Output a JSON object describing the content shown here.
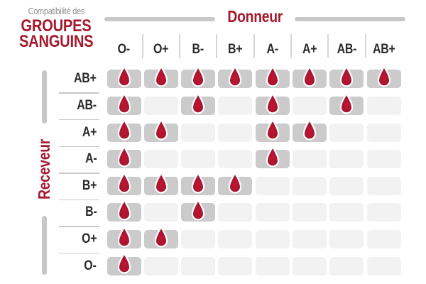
{
  "title": {
    "subtitle": "Compatibilité des",
    "main_line1": "GROUPES",
    "main_line2": "SANGUINS"
  },
  "axes": {
    "donor": "Donneur",
    "recipient": "Receveur"
  },
  "icons": {
    "compatible_marker": "blood-drop-icon"
  },
  "chart_data": {
    "type": "heatmap",
    "title": "Compatibilité des GROUPES SANGUINS",
    "x_axis_label": "Donneur",
    "y_axis_label": "Receveur",
    "columns": [
      "O-",
      "O+",
      "B-",
      "B+",
      "A-",
      "A+",
      "AB-",
      "AB+"
    ],
    "rows": [
      "AB+",
      "AB-",
      "A+",
      "A-",
      "B+",
      "B-",
      "O+",
      "O-"
    ],
    "matrix": [
      [
        1,
        1,
        1,
        1,
        1,
        1,
        1,
        1
      ],
      [
        1,
        0,
        1,
        0,
        1,
        0,
        1,
        0
      ],
      [
        1,
        1,
        0,
        0,
        1,
        1,
        0,
        0
      ],
      [
        1,
        0,
        0,
        0,
        1,
        0,
        0,
        0
      ],
      [
        1,
        1,
        1,
        1,
        0,
        0,
        0,
        0
      ],
      [
        1,
        0,
        1,
        0,
        0,
        0,
        0,
        0
      ],
      [
        1,
        1,
        0,
        0,
        0,
        0,
        0,
        0
      ],
      [
        1,
        0,
        0,
        0,
        0,
        0,
        0,
        0
      ]
    ],
    "cell_marker_meaning": "1 = blood drop shown (compatible), 0 = empty cell"
  },
  "colors": {
    "accent_red": "#A6192E",
    "drop_red_center": "#BE1634",
    "drop_red_edge": "#8F1226",
    "subtitle_gray": "#8E8E8E",
    "label_dark": "#2B2B2B",
    "axis_bar_gray": "#C8C8C8",
    "cell_filled_gray": "#CBCBCB",
    "cell_empty_gray": "#F2F2F2",
    "separator_gray": "#D6D6D6"
  }
}
